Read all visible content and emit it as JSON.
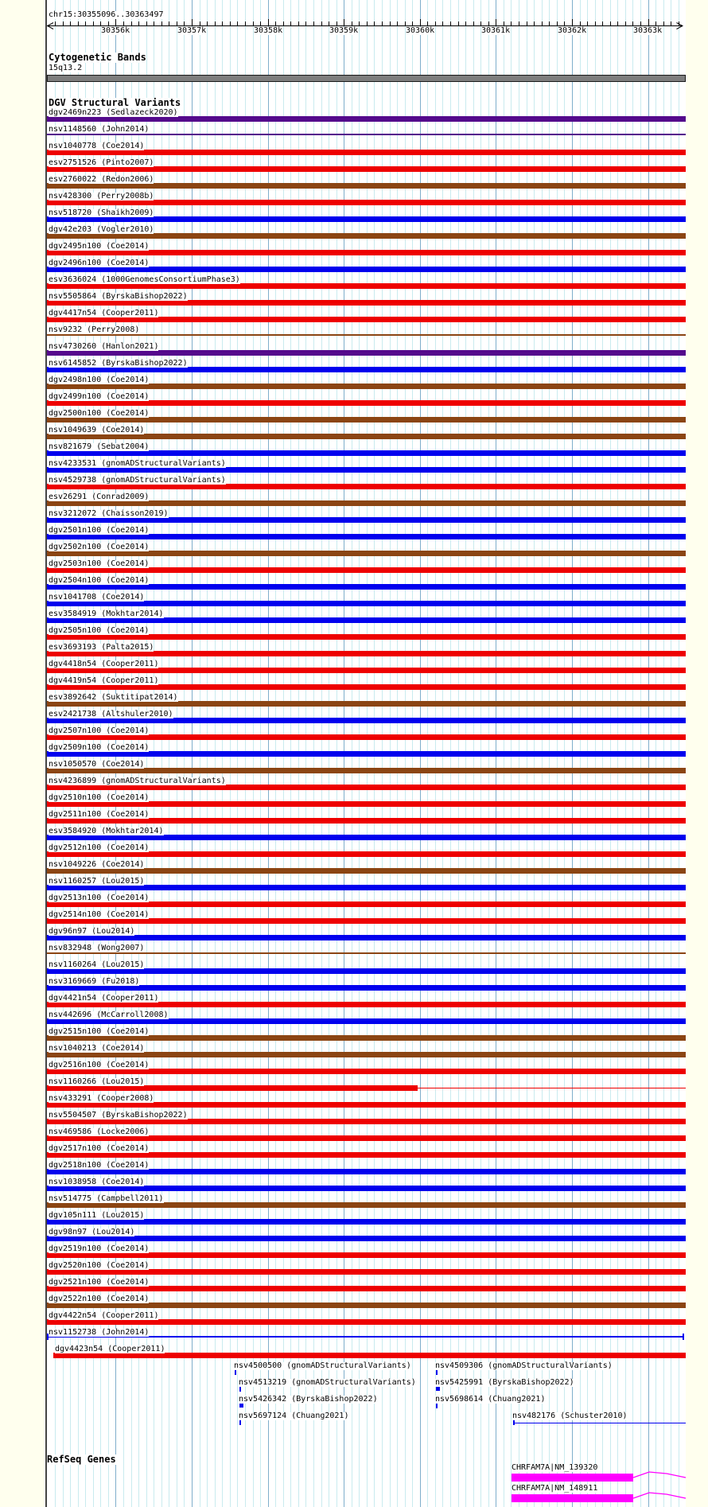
{
  "region": {
    "title": "chr15:30355096..30363497",
    "chromosome": "chr15",
    "start": 30355096,
    "end": 30363497
  },
  "ruler": {
    "ticks": [
      {
        "label": "30356k",
        "bp": 30356000
      },
      {
        "label": "30357k",
        "bp": 30357000
      },
      {
        "label": "30358k",
        "bp": 30358000
      },
      {
        "label": "30359k",
        "bp": 30359000
      },
      {
        "label": "30360k",
        "bp": 30360000
      },
      {
        "label": "30361k",
        "bp": 30361000
      },
      {
        "label": "30362k",
        "bp": 30362000
      },
      {
        "label": "30363k",
        "bp": 30363000
      }
    ]
  },
  "sections": {
    "cytogenetic": {
      "title": "Cytogenetic Bands",
      "band": "15q13.2"
    },
    "dgv": {
      "title": "DGV Structural Variants"
    },
    "refseq": {
      "title": "RefSeq Genes"
    }
  },
  "colors": {
    "red": "#EE0000",
    "blue": "#0000EE",
    "brown": "#8B4513",
    "purple": "#54098C",
    "magenta": "#FF00FF",
    "gray_band": "#7E7E7E",
    "grid_minor": "#C9EBEF",
    "grid_major": "#7FAECB",
    "axis": "#000000"
  },
  "chart_data": {
    "type": "table",
    "title": "chr15:30355096..30363497",
    "x_axis": {
      "unit": "bp",
      "range": [
        30355096,
        30363497
      ],
      "ticks": [
        "30356k",
        "30357k",
        "30358k",
        "30359k",
        "30360k",
        "30361k",
        "30362k",
        "30363k"
      ]
    },
    "tracks": [
      {
        "name": "Cytogenetic Bands",
        "features": [
          {
            "label": "15q13.2",
            "color": "gray",
            "start": 30355096,
            "end": 30363497
          }
        ]
      },
      {
        "name": "DGV Structural Variants",
        "rows": [
          {
            "id": "dgv2469n223",
            "source": "Sedlazeck2020",
            "color": "purple"
          },
          {
            "id": "nsv1148560",
            "source": "John2014",
            "color": "purple",
            "glyph": "line"
          },
          {
            "id": "nsv1040778",
            "source": "Coe2014",
            "color": "red"
          },
          {
            "id": "esv2751526",
            "source": "Pinto2007",
            "color": "red"
          },
          {
            "id": "esv2760022",
            "source": "Redon2006",
            "color": "brown"
          },
          {
            "id": "nsv428300",
            "source": "Perry2008b",
            "color": "red"
          },
          {
            "id": "nsv518720",
            "source": "Shaikh2009",
            "color": "blue"
          },
          {
            "id": "dgv42e203",
            "source": "Vogler2010",
            "color": "brown"
          },
          {
            "id": "dgv2495n100",
            "source": "Coe2014",
            "color": "red"
          },
          {
            "id": "dgv2496n100",
            "source": "Coe2014",
            "color": "blue"
          },
          {
            "id": "esv3636024",
            "source": "1000GenomesConsortiumPhase3",
            "color": "red"
          },
          {
            "id": "nsv5505864",
            "source": "ByrskaBishop2022",
            "color": "red"
          },
          {
            "id": "dgv4417n54",
            "source": "Cooper2011",
            "color": "red"
          },
          {
            "id": "nsv9232",
            "source": "Perry2008",
            "color": "brown",
            "glyph": "line"
          },
          {
            "id": "nsv4730260",
            "source": "Hanlon2021",
            "color": "purple"
          },
          {
            "id": "nsv6145852",
            "source": "ByrskaBishop2022",
            "color": "blue"
          },
          {
            "id": "dgv2498n100",
            "source": "Coe2014",
            "color": "brown"
          },
          {
            "id": "dgv2499n100",
            "source": "Coe2014",
            "color": "red"
          },
          {
            "id": "dgv2500n100",
            "source": "Coe2014",
            "color": "brown"
          },
          {
            "id": "nsv1049639",
            "source": "Coe2014",
            "color": "brown"
          },
          {
            "id": "nsv821679",
            "source": "Sebat2004",
            "color": "blue"
          },
          {
            "id": "nsv4233531",
            "source": "gnomADStructuralVariants",
            "color": "blue"
          },
          {
            "id": "nsv4529738",
            "source": "gnomADStructuralVariants",
            "color": "red"
          },
          {
            "id": "esv26291",
            "source": "Conrad2009",
            "color": "brown"
          },
          {
            "id": "nsv3212072",
            "source": "Chaisson2019",
            "color": "blue"
          },
          {
            "id": "dgv2501n100",
            "source": "Coe2014",
            "color": "blue"
          },
          {
            "id": "dgv2502n100",
            "source": "Coe2014",
            "color": "brown"
          },
          {
            "id": "dgv2503n100",
            "source": "Coe2014",
            "color": "red"
          },
          {
            "id": "dgv2504n100",
            "source": "Coe2014",
            "color": "blue"
          },
          {
            "id": "nsv1041708",
            "source": "Coe2014",
            "color": "blue"
          },
          {
            "id": "esv3584919",
            "source": "Mokhtar2014",
            "color": "blue"
          },
          {
            "id": "dgv2505n100",
            "source": "Coe2014",
            "color": "red"
          },
          {
            "id": "esv3693193",
            "source": "Palta2015",
            "color": "red"
          },
          {
            "id": "dgv4418n54",
            "source": "Cooper2011",
            "color": "red"
          },
          {
            "id": "dgv4419n54",
            "source": "Cooper2011",
            "color": "red"
          },
          {
            "id": "esv3892642",
            "source": "Suktitipat2014",
            "color": "brown"
          },
          {
            "id": "esv2421738",
            "source": "Altshuler2010",
            "color": "blue"
          },
          {
            "id": "dgv2507n100",
            "source": "Coe2014",
            "color": "red"
          },
          {
            "id": "dgv2509n100",
            "source": "Coe2014",
            "color": "blue"
          },
          {
            "id": "nsv1050570",
            "source": "Coe2014",
            "color": "brown"
          },
          {
            "id": "nsv4236899",
            "source": "gnomADStructuralVariants",
            "color": "red"
          },
          {
            "id": "dgv2510n100",
            "source": "Coe2014",
            "color": "red"
          },
          {
            "id": "dgv2511n100",
            "source": "Coe2014",
            "color": "red"
          },
          {
            "id": "esv3584920",
            "source": "Mokhtar2014",
            "color": "blue"
          },
          {
            "id": "dgv2512n100",
            "source": "Coe2014",
            "color": "red"
          },
          {
            "id": "nsv1049226",
            "source": "Coe2014",
            "color": "brown"
          },
          {
            "id": "nsv1160257",
            "source": "Lou2015",
            "color": "blue"
          },
          {
            "id": "dgv2513n100",
            "source": "Coe2014",
            "color": "red"
          },
          {
            "id": "dgv2514n100",
            "source": "Coe2014",
            "color": "red"
          },
          {
            "id": "dgv96n97",
            "source": "Lou2014",
            "color": "blue"
          },
          {
            "id": "nsv832948",
            "source": "Wong2007",
            "color": "brown",
            "glyph": "line"
          },
          {
            "id": "nsv1160264",
            "source": "Lou2015",
            "color": "blue"
          },
          {
            "id": "nsv3169669",
            "source": "Fu2018",
            "color": "blue"
          },
          {
            "id": "dgv4421n54",
            "source": "Cooper2011",
            "color": "red"
          },
          {
            "id": "nsv442696",
            "source": "McCarroll2008",
            "color": "blue"
          },
          {
            "id": "dgv2515n100",
            "source": "Coe2014",
            "color": "brown"
          },
          {
            "id": "nsv1040213",
            "source": "Coe2014",
            "color": "brown"
          },
          {
            "id": "dgv2516n100",
            "source": "Coe2014",
            "color": "red"
          },
          {
            "id": "nsv1160266",
            "source": "Lou2015",
            "color": "red",
            "glyph": "box_line",
            "thick_end": 30359972
          },
          {
            "id": "nsv433291",
            "source": "Cooper2008",
            "color": "red"
          },
          {
            "id": "nsv5504507",
            "source": "ByrskaBishop2022",
            "color": "red"
          },
          {
            "id": "nsv469586",
            "source": "Locke2006",
            "color": "red"
          },
          {
            "id": "dgv2517n100",
            "source": "Coe2014",
            "color": "red"
          },
          {
            "id": "dgv2518n100",
            "source": "Coe2014",
            "color": "blue"
          },
          {
            "id": "nsv1038958",
            "source": "Coe2014",
            "color": "blue"
          },
          {
            "id": "nsv514775",
            "source": "Campbell2011",
            "color": "brown"
          },
          {
            "id": "dgv105n111",
            "source": "Lou2015",
            "color": "blue"
          },
          {
            "id": "dgv98n97",
            "source": "Lou2014",
            "color": "blue"
          },
          {
            "id": "dgv2519n100",
            "source": "Coe2014",
            "color": "red"
          },
          {
            "id": "dgv2520n100",
            "source": "Coe2014",
            "color": "red"
          },
          {
            "id": "dgv2521n100",
            "source": "Coe2014",
            "color": "red"
          },
          {
            "id": "dgv2522n100",
            "source": "Coe2014",
            "color": "brown"
          },
          {
            "id": "dgv4422n54",
            "source": "Cooper2011",
            "color": "red"
          },
          {
            "id": "nsv1152738",
            "source": "John2014",
            "color": "blue",
            "glyph": "line_ends"
          },
          {
            "id": "dgv4423n54",
            "source": "Cooper2011",
            "color": "red",
            "start": 30355180
          }
        ],
        "floating": [
          {
            "id": "nsv4500500",
            "source": "gnomADStructuralVariants",
            "row": 0,
            "pos": 30357565,
            "marker": "tick"
          },
          {
            "id": "nsv4509306",
            "source": "gnomADStructuralVariants",
            "row": 0,
            "pos": 30360212,
            "marker": "tick"
          },
          {
            "id": "nsv4513219",
            "source": "gnomADStructuralVariants",
            "row": 1,
            "pos": 30357628,
            "marker": "tick"
          },
          {
            "id": "nsv5425991",
            "source": "ByrskaBishop2022",
            "row": 1,
            "pos": 30360212,
            "marker": "square"
          },
          {
            "id": "nsv5426342",
            "source": "ByrskaBishop2022",
            "row": 2,
            "pos": 30357628,
            "marker": "square"
          },
          {
            "id": "nsv5698614",
            "source": "Chuang2021",
            "row": 2,
            "pos": 30360212,
            "marker": "tick"
          },
          {
            "id": "nsv5697124",
            "source": "Chuang2021",
            "row": 3,
            "pos": 30357628,
            "marker": "tick"
          },
          {
            "id": "nsv482176",
            "source": "Schuster2010",
            "row": 3,
            "pos": 30361227,
            "marker": "line"
          }
        ]
      },
      {
        "name": "RefSeq Genes",
        "genes": [
          {
            "label": "CHRFAM7A|NM_139320",
            "start": 30361206,
            "thick_end": 30362807,
            "end": 30363497
          },
          {
            "label": "CHRFAM7A|NM_148911",
            "start": 30361206,
            "thick_end": 30362807,
            "end": 30363497
          }
        ]
      }
    ]
  }
}
